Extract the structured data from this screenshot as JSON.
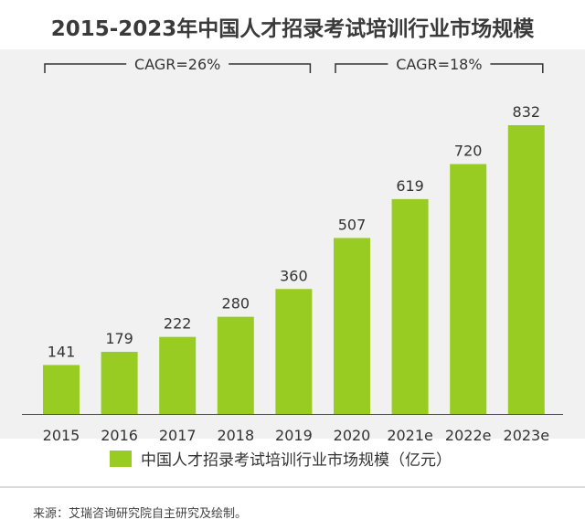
{
  "chart_data": {
    "type": "bar",
    "title": "2015-2023年中国人才招录考试培训行业市场规模",
    "categories": [
      "2015",
      "2016",
      "2017",
      "2018",
      "2019",
      "2020",
      "2021e",
      "2022e",
      "2023e"
    ],
    "series": [
      {
        "name": "中国人才招录考试培训行业市场规模（亿元）",
        "values": [
          141,
          179,
          222,
          280,
          360,
          507,
          619,
          720,
          832
        ],
        "color": "#99cc22"
      }
    ],
    "ylim": [
      0,
      900
    ],
    "grid": false,
    "legend_position": "bottom",
    "annotations": [
      {
        "label": "CAGR=26%",
        "from": "2015",
        "to": "2019"
      },
      {
        "label": "CAGR=18%",
        "from": "2020",
        "to": "2023e"
      }
    ]
  },
  "source": "来源：艾瑞咨询研究院自主研究及绘制。"
}
